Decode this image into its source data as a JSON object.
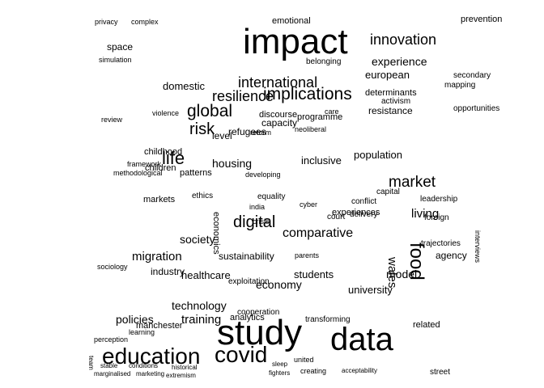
{
  "colors": {
    "background": "#ffffff",
    "text": "#000000"
  },
  "words": [
    "impact",
    "study",
    "data",
    "covid",
    "education",
    "global",
    "life",
    "risk",
    "digital",
    "implications",
    "international",
    "resilience",
    "food",
    "innovation",
    "market",
    "economy",
    "comparative",
    "experience",
    "housing",
    "society",
    "training",
    "technology",
    "migration",
    "students",
    "policies",
    "living",
    "model",
    "wales",
    "university",
    "healthcare",
    "children",
    "domestic",
    "european",
    "population",
    "inclusive",
    "refugees",
    "capacity",
    "programme",
    "sustainability",
    "childhood",
    "agency",
    "related",
    "analytics",
    "industry",
    "economics",
    "level",
    "space",
    "emotional",
    "manchester",
    "interviews",
    "activism",
    "resistance",
    "determinants",
    "discourse",
    "prevention",
    "mapping",
    "opportunities",
    "leadership",
    "capital",
    "foreign",
    "markets",
    "patterns",
    "ethics",
    "conflict",
    "equality",
    "court",
    "cooperation",
    "experiences",
    "delivery",
    "exploitation",
    "transforming",
    "belonging",
    "trajectories",
    "neoliberal",
    "care",
    "secondary",
    "privacy",
    "complex",
    "simulation",
    "violence",
    "extremism",
    "stable",
    "conditions",
    "marketing",
    "historical",
    "fighters",
    "creating",
    "acceptability",
    "street",
    "marginalised",
    "team",
    "perception",
    "learning",
    "sleep",
    "united",
    "sociology",
    "framework",
    "methodological",
    "parents",
    "reform",
    "developing",
    "india",
    "cyber",
    "crisis",
    "review"
  ]
}
